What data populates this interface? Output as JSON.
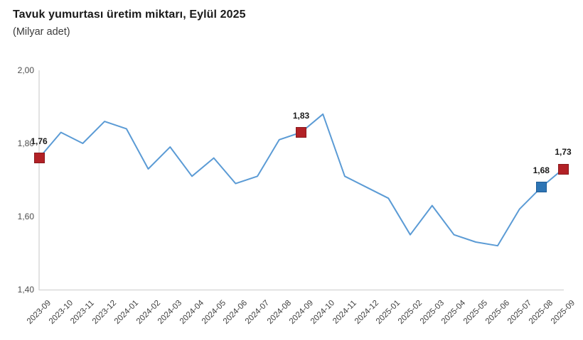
{
  "chart_data": {
    "type": "line",
    "title": "Tavuk yumurtası üretim miktarı, Eylül 2025",
    "subtitle": "(Milyar adet)",
    "categories": [
      "2023-09",
      "2023-10",
      "2023-11",
      "2023-12",
      "2024-01",
      "2024-02",
      "2024-03",
      "2024-04",
      "2024-05",
      "2024-06",
      "2024-07",
      "2024-08",
      "2024-09",
      "2024-10",
      "2024-11",
      "2024-12",
      "2025-01",
      "2025-02",
      "2025-03",
      "2025-04",
      "2025-05",
      "2025-06",
      "2025-07",
      "2025-08",
      "2025-09"
    ],
    "values": [
      1.76,
      1.83,
      1.8,
      1.86,
      1.84,
      1.73,
      1.79,
      1.71,
      1.76,
      1.69,
      1.71,
      1.81,
      1.83,
      1.88,
      1.71,
      1.68,
      1.65,
      1.55,
      1.63,
      1.55,
      1.53,
      1.52,
      1.62,
      1.68,
      1.73
    ],
    "ylim": [
      1.4,
      2.0
    ],
    "yticks": [
      {
        "value": 2.0,
        "label": "2,00"
      },
      {
        "value": 1.8,
        "label": "1,80"
      },
      {
        "value": 1.6,
        "label": "1,60"
      },
      {
        "value": 1.4,
        "label": "1,40"
      }
    ],
    "grid": false,
    "legend": false,
    "line_color": "#5b9bd5",
    "axis_color": "#d9d9d9",
    "highlighted_points": [
      {
        "category": "2023-09",
        "index": 0,
        "value": 1.76,
        "label": "1,76",
        "color": "#b22126",
        "border": "#8a1a1e"
      },
      {
        "category": "2024-09",
        "index": 12,
        "value": 1.83,
        "label": "1,83",
        "color": "#b22126",
        "border": "#8a1a1e"
      },
      {
        "category": "2025-08",
        "index": 23,
        "value": 1.68,
        "label": "1,68",
        "color": "#2d75b5",
        "border": "#1f5c96"
      },
      {
        "category": "2025-09",
        "index": 24,
        "value": 1.73,
        "label": "1,73",
        "color": "#b22126",
        "border": "#8a1a1e"
      }
    ]
  }
}
